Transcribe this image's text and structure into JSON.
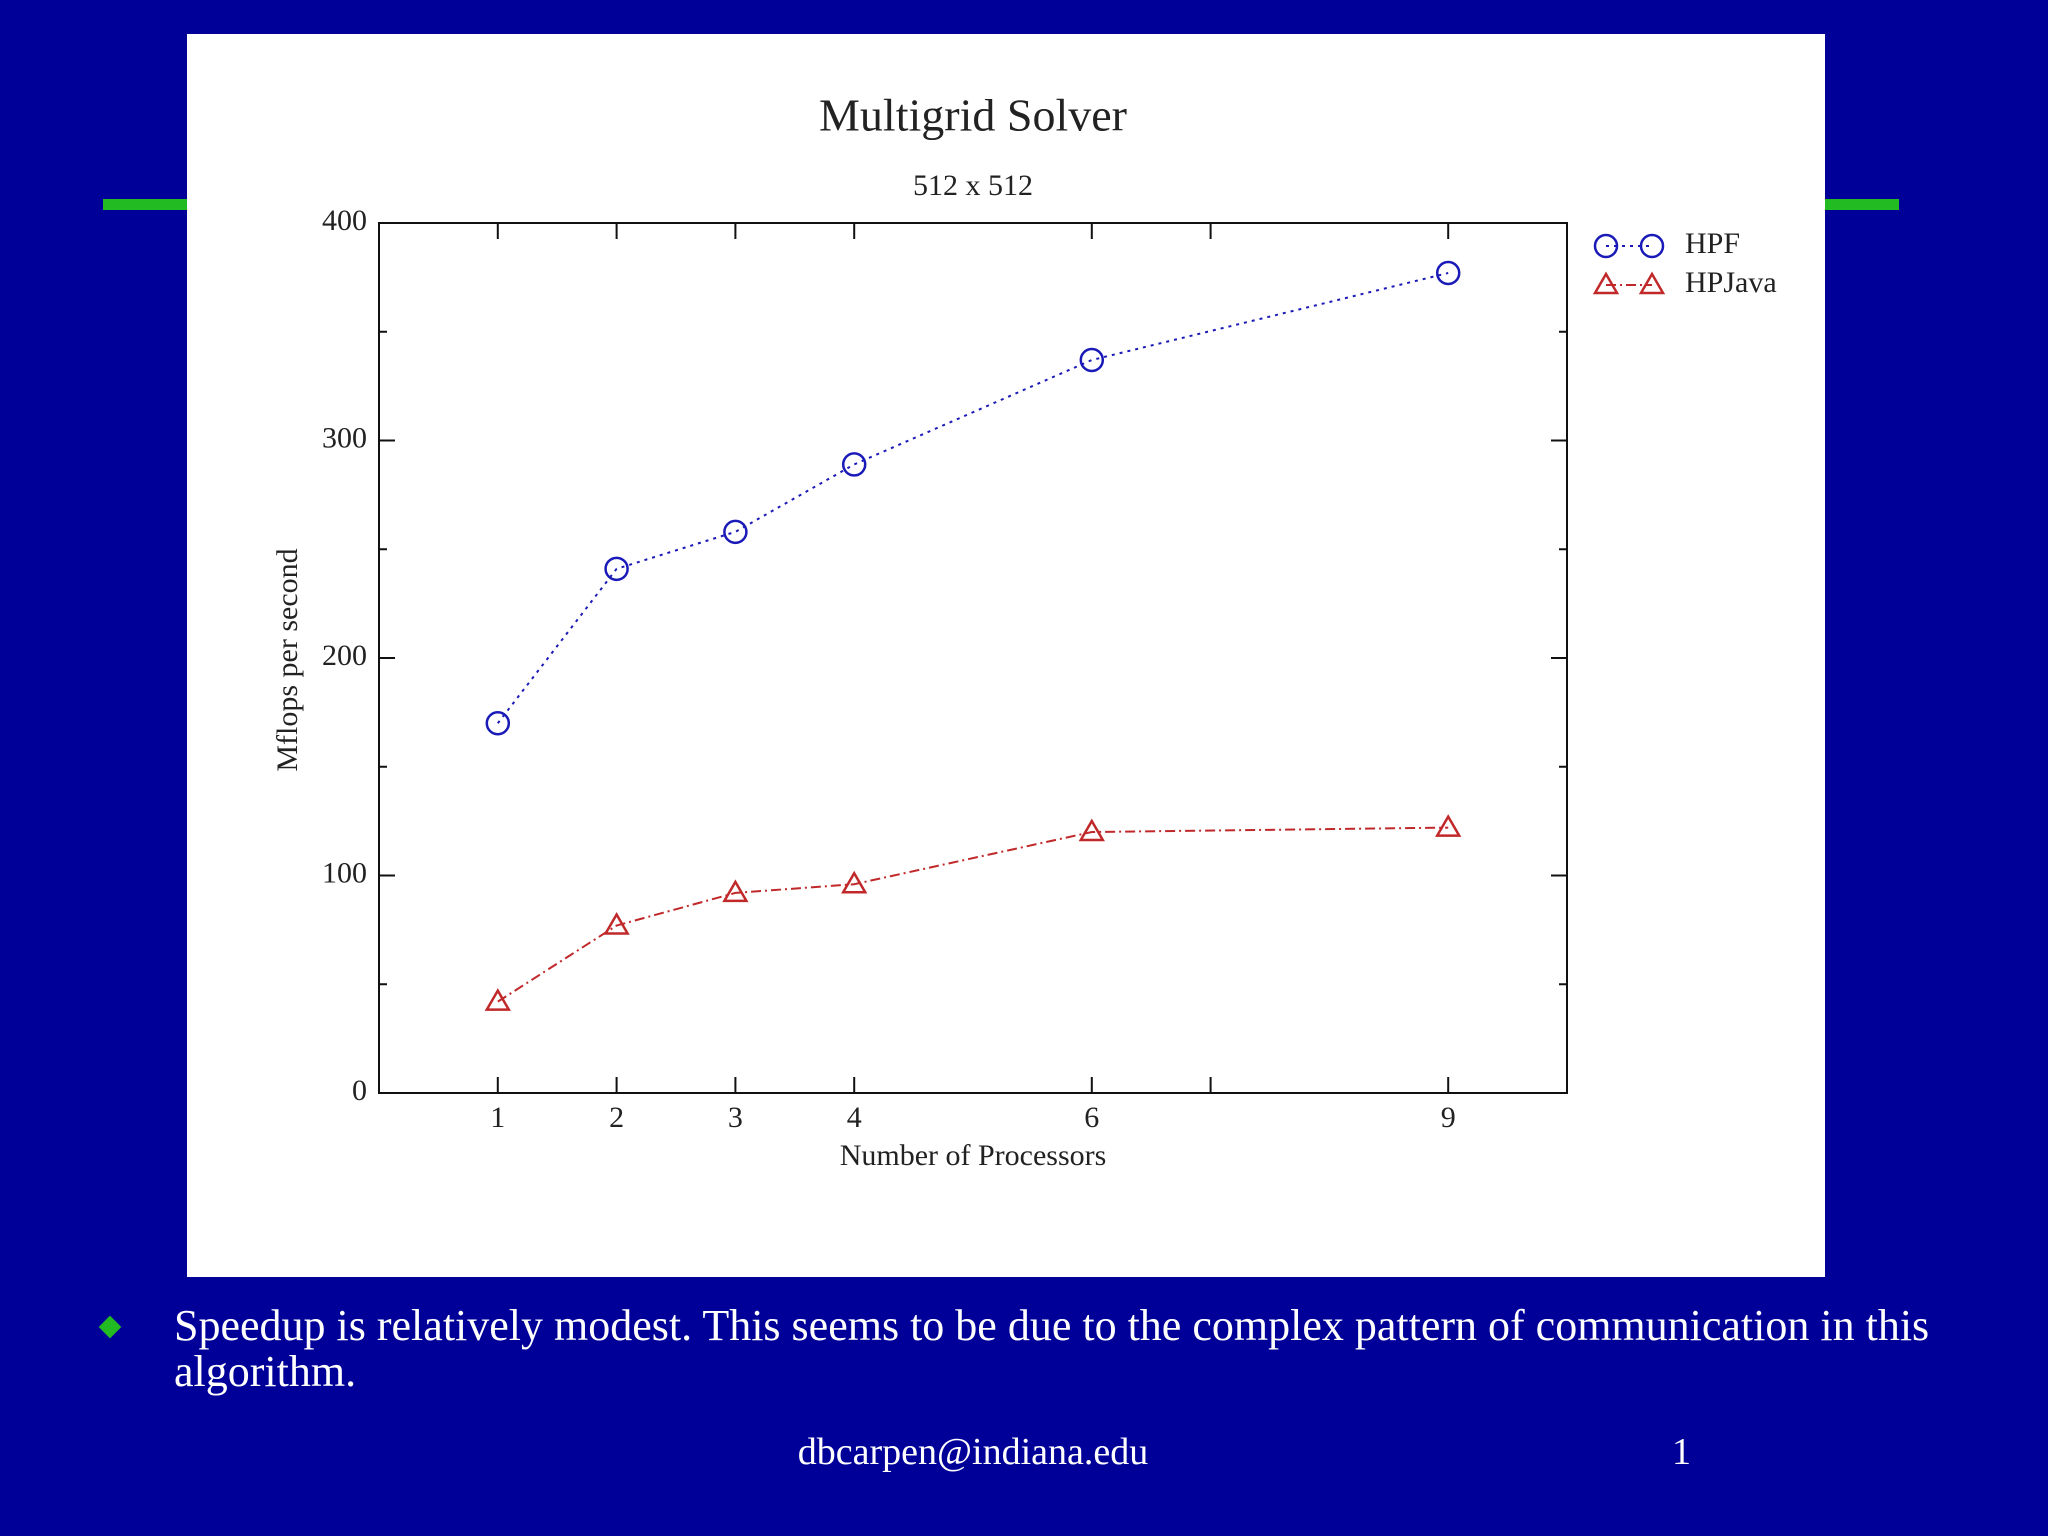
{
  "chart_data": {
    "type": "line",
    "title": "Multigrid Solver",
    "subtitle": "512 x 512",
    "x_label": "Number of Processors",
    "y_label": "Mflops per second",
    "x": [
      1,
      2,
      3,
      4,
      6,
      9
    ],
    "series": [
      {
        "name": "HPF",
        "color": "#1a1ab8",
        "marker": "circle",
        "dash": "3,5",
        "values": [
          170,
          241,
          258,
          289,
          337,
          377
        ]
      },
      {
        "name": "HPJava",
        "color": "#c0282a",
        "marker": "triangle",
        "dash": "10,4,2,4",
        "values": [
          42,
          77,
          92,
          96,
          120,
          122
        ]
      }
    ],
    "xlim": [
      0,
      10
    ],
    "xticks": [
      1,
      2,
      3,
      4,
      6,
      9
    ],
    "xticks_unlabeled": [
      7
    ],
    "ylim": [
      0,
      400
    ],
    "yticks": [
      0,
      100,
      200,
      300,
      400
    ],
    "yticks_minor": [
      50,
      150,
      250,
      350
    ],
    "grid": false,
    "legend": "top-right-outside"
  },
  "slide": {
    "bullet": "Speedup is relatively modest. This seems to be due to the complex pattern of communication in this algorithm.",
    "footer": "dbcarpen@indiana.edu",
    "page_number": "1"
  }
}
